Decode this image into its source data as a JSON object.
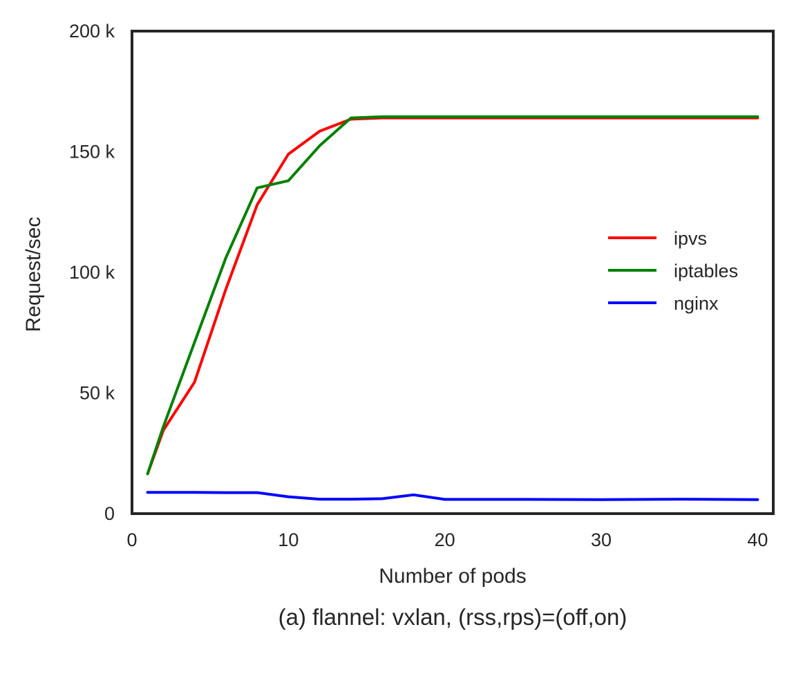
{
  "chart_data": {
    "type": "line",
    "title": "",
    "caption": "(a) flannel: vxlan, (rss,rps)=(off,on)",
    "xlabel": "Number of pods",
    "ylabel": "Request/sec",
    "xlim": [
      0,
      41
    ],
    "ylim": [
      0,
      200000
    ],
    "x_ticks": [
      0,
      10,
      20,
      30,
      40
    ],
    "x_tick_labels": [
      "0",
      "10",
      "20",
      "30",
      "40"
    ],
    "y_ticks": [
      0,
      50000,
      100000,
      150000,
      200000
    ],
    "y_tick_labels": [
      "0",
      "50 k",
      "100 k",
      "150 k",
      "200 k"
    ],
    "grid": false,
    "legend_position": "center-right",
    "series": [
      {
        "name": "ipvs",
        "color": "#ff0000",
        "x": [
          1,
          2,
          4,
          6,
          8,
          10,
          12,
          14,
          16,
          18,
          20,
          25,
          30,
          35,
          40
        ],
        "y": [
          16500,
          34500,
          54500,
          93000,
          128000,
          149000,
          158500,
          163500,
          164000,
          164000,
          164000,
          164000,
          164000,
          164000,
          164000
        ]
      },
      {
        "name": "iptables",
        "color": "#008000",
        "x": [
          1,
          2,
          4,
          6,
          8,
          10,
          12,
          14,
          16,
          18,
          20,
          25,
          30,
          35,
          40
        ],
        "y": [
          16500,
          36000,
          71000,
          106000,
          135000,
          138000,
          152500,
          164000,
          164500,
          164500,
          164500,
          164500,
          164500,
          164500,
          164500
        ]
      },
      {
        "name": "nginx",
        "color": "#0000ff",
        "x": [
          1,
          4,
          6,
          8,
          10,
          12,
          14,
          16,
          18,
          20,
          25,
          30,
          35,
          40
        ],
        "y": [
          8800,
          8800,
          8700,
          8700,
          7000,
          6000,
          6000,
          6200,
          7800,
          5900,
          5900,
          5800,
          6000,
          5800
        ]
      }
    ]
  }
}
